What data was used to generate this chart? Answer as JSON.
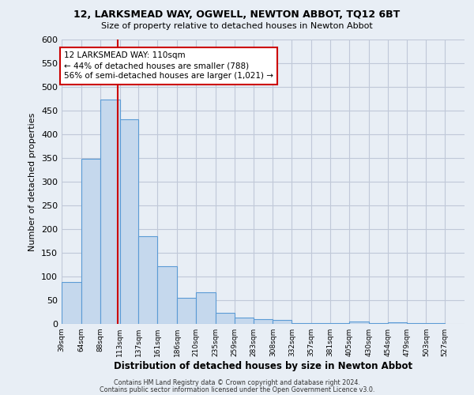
{
  "title": "12, LARKSMEAD WAY, OGWELL, NEWTON ABBOT, TQ12 6BT",
  "subtitle": "Size of property relative to detached houses in Newton Abbot",
  "xlabel": "Distribution of detached houses by size in Newton Abbot",
  "ylabel": "Number of detached properties",
  "footer_line1": "Contains HM Land Registry data © Crown copyright and database right 2024.",
  "footer_line2": "Contains public sector information licensed under the Open Government Licence v3.0.",
  "bar_left_edges": [
    39,
    64,
    88,
    113,
    137,
    161,
    186,
    210,
    235,
    259,
    283,
    308,
    332,
    357,
    381,
    405,
    430,
    454,
    479,
    503
  ],
  "bar_widths": [
    25,
    24,
    25,
    24,
    24,
    25,
    24,
    25,
    24,
    24,
    25,
    24,
    25,
    24,
    24,
    25,
    24,
    25,
    24,
    24
  ],
  "bar_heights": [
    88,
    349,
    474,
    432,
    185,
    122,
    55,
    67,
    24,
    13,
    10,
    8,
    2,
    2,
    2,
    5,
    2,
    4,
    2,
    2
  ],
  "bar_color": "#c5d8ed",
  "bar_edge_color": "#5b9bd5",
  "grid_color": "#c0c8d8",
  "background_color": "#e8eef5",
  "vline_x": 110,
  "vline_color": "#cc0000",
  "annotation_line1": "12 LARKSMEAD WAY: 110sqm",
  "annotation_line2": "← 44% of detached houses are smaller (788)",
  "annotation_line3": "56% of semi-detached houses are larger (1,021) →",
  "annotation_box_color": "#ffffff",
  "annotation_box_edge": "#cc0000",
  "ylim": [
    0,
    600
  ],
  "yticks": [
    0,
    50,
    100,
    150,
    200,
    250,
    300,
    350,
    400,
    450,
    500,
    550,
    600
  ],
  "x_tick_labels": [
    "39sqm",
    "64sqm",
    "88sqm",
    "113sqm",
    "137sqm",
    "161sqm",
    "186sqm",
    "210sqm",
    "235sqm",
    "259sqm",
    "283sqm",
    "308sqm",
    "332sqm",
    "357sqm",
    "381sqm",
    "405sqm",
    "430sqm",
    "454sqm",
    "479sqm",
    "503sqm",
    "527sqm"
  ],
  "x_tick_positions": [
    39,
    64,
    88,
    113,
    137,
    161,
    186,
    210,
    235,
    259,
    283,
    308,
    332,
    357,
    381,
    405,
    430,
    454,
    479,
    503,
    527
  ],
  "xlim_min": 39,
  "xlim_max": 552
}
